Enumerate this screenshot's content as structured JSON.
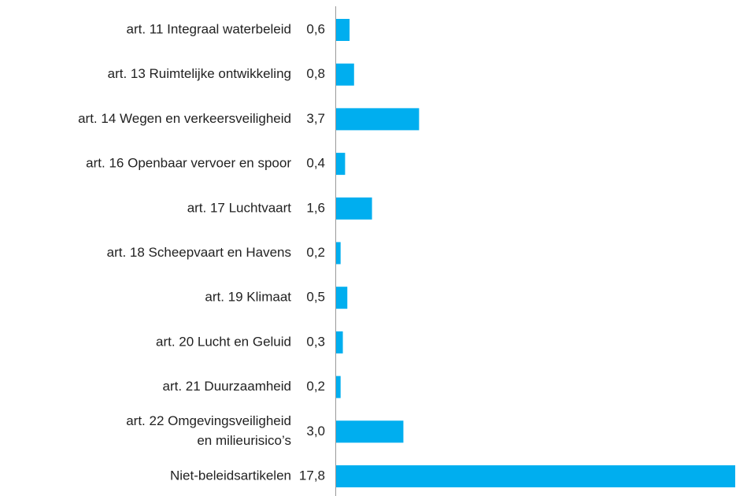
{
  "chart_data": {
    "type": "bar",
    "orientation": "horizontal",
    "categories": [
      "art. 11 Integraal waterbeleid",
      "art. 13 Ruimtelijke ontwikkeling",
      "art. 14 Wegen en verkeersveiligheid",
      "art. 16 Openbaar vervoer en spoor",
      "art. 17 Luchtvaart",
      "art. 18 Scheepvaart en Havens",
      "art. 19 Klimaat",
      "art. 20 Lucht en Geluid",
      "art. 21 Duurzaamheid",
      "art. 22 Omgevingsveiligheid\nen milieurisico’s",
      "Niet-beleidsartikelen"
    ],
    "values": [
      0.6,
      0.8,
      3.7,
      0.4,
      1.6,
      0.2,
      0.5,
      0.3,
      0.2,
      3.0,
      17.8
    ],
    "value_labels": [
      "0,6",
      "0,8",
      "3,7",
      "0,4",
      "1,6",
      "0,2",
      "0,5",
      "0,3",
      "0,2",
      "3,0",
      "17,8"
    ],
    "color": "#00aeef"
  }
}
